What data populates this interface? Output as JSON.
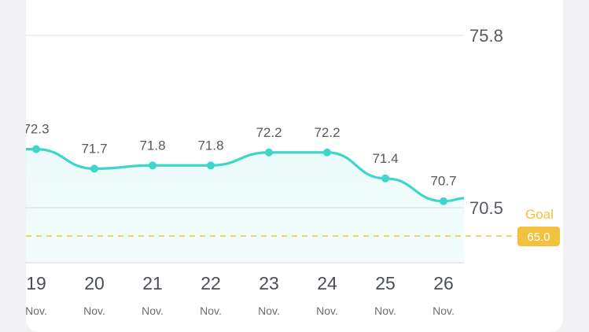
{
  "chart_data": {
    "type": "line",
    "categories": [
      "19",
      "20",
      "21",
      "22",
      "23",
      "24",
      "25",
      "26"
    ],
    "month_labels": [
      "Nov.",
      "Nov.",
      "Nov.",
      "Nov.",
      "Nov.",
      "Nov.",
      "Nov.",
      "Nov."
    ],
    "values": [
      72.3,
      71.7,
      71.8,
      71.8,
      72.2,
      72.2,
      71.4,
      70.7
    ],
    "y_ticks": [
      "75.8",
      "70.5"
    ],
    "goal": {
      "label": "Goal",
      "value": "65.0",
      "y": 65.0
    },
    "line_color": "#3ed6c9",
    "goal_color": "#f2c23f"
  }
}
